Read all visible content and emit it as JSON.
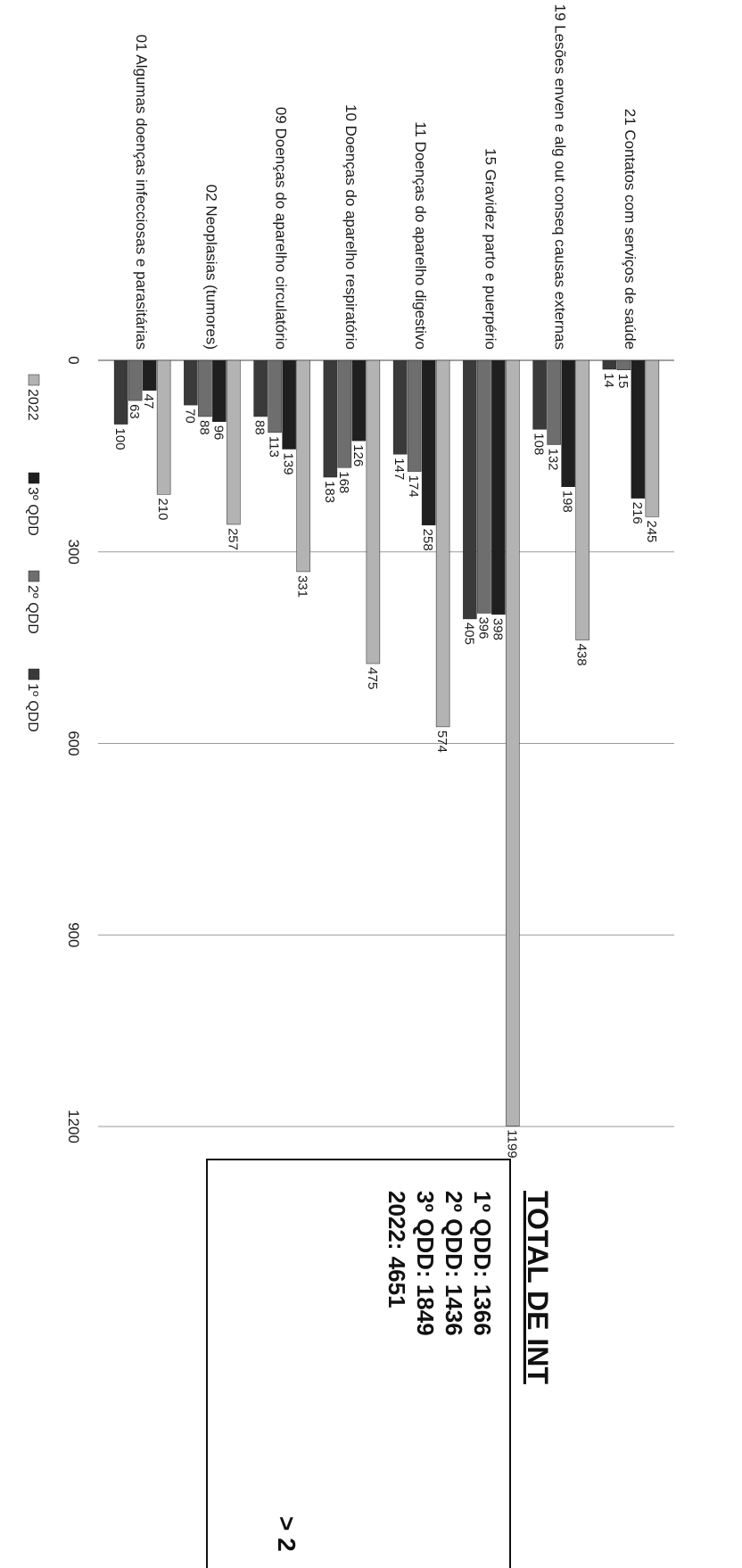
{
  "chart_data": {
    "type": "bar",
    "orientation": "horizontal (page rotated 90°)",
    "categories": [
      "21 Contatos com serviços de saúde",
      "19 Lesões enven e alg out conseq causas externas",
      "15 Gravidez parto e puerpério",
      "11 Doenças do aparelho digestivo",
      "10 Doenças do aparelho respiratório",
      "09 Doenças do aparelho circulatório",
      "02 Neoplasias (tumores)",
      "01 Algumas doenças infecciosas e parasitárias"
    ],
    "series": [
      {
        "name": "2022",
        "color": "#b3b3b3",
        "values": [
          245,
          438,
          1199,
          574,
          475,
          331,
          257,
          210
        ]
      },
      {
        "name": "3º QDD",
        "color": "#1f1f1f",
        "values": [
          216,
          198,
          398,
          258,
          126,
          139,
          96,
          47
        ]
      },
      {
        "name": "2º QDD",
        "color": "#6e6e6e",
        "values": [
          15,
          132,
          396,
          174,
          168,
          113,
          88,
          63
        ]
      },
      {
        "name": "1º QDD",
        "color": "#3a3a3a",
        "values": [
          14,
          108,
          405,
          147,
          183,
          88,
          70,
          100
        ]
      }
    ],
    "xaxis_ticks": [
      "0",
      "300",
      "600",
      "900",
      "1200"
    ],
    "xlim": [
      0,
      1200
    ],
    "grid": "vertical gridlines at ticks",
    "legend": "bottom",
    "legend_labels": [
      "2022",
      "3º QDD",
      "2º QDD",
      "1º QDD"
    ]
  },
  "totals_box": {
    "heading": "TOTAL DE INT",
    "lines": [
      "1º QDD: 1366",
      "2º QDD: 1436",
      "3º QDD: 1849",
      "2022:  4651"
    ],
    "note": "> 2"
  }
}
